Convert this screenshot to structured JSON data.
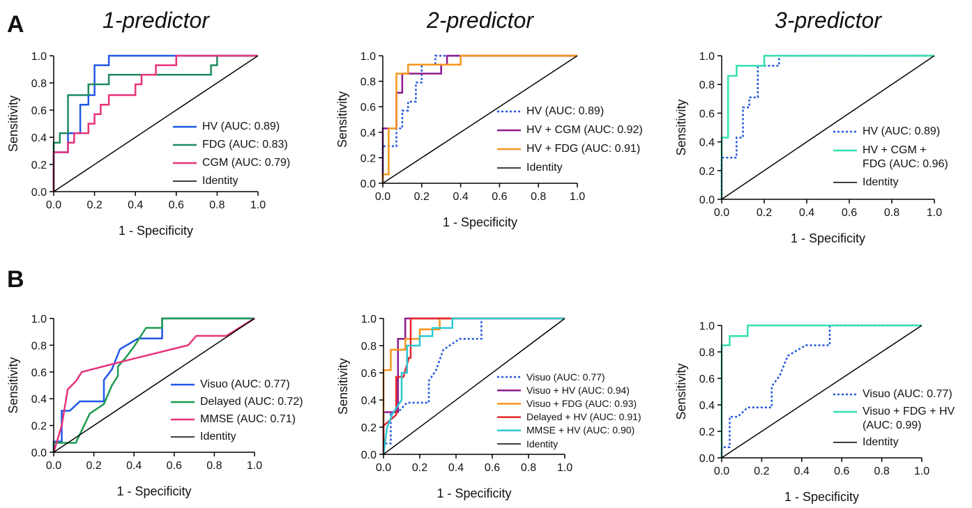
{
  "panel_labels": [
    "A",
    "B"
  ],
  "chart_data": [
    {
      "type": "line",
      "title": "1-predictor",
      "xlabel": "1 - Specificity",
      "ylabel": "Sensitivity",
      "xlim": [
        0,
        1
      ],
      "ylim": [
        0,
        1
      ],
      "xticks": [
        {
          "value": 0,
          "label": "0.0"
        },
        {
          "value": 0.2,
          "label": "0.2"
        },
        {
          "value": 0.4,
          "label": "0.4"
        },
        {
          "value": 0.6,
          "label": "0.6"
        },
        {
          "value": 0.8,
          "label": "0.8"
        },
        {
          "value": 1,
          "label": "1.0"
        }
      ],
      "yticks": [
        {
          "value": 0,
          "label": "0.0"
        },
        {
          "value": 0.2,
          "label": "0.2"
        },
        {
          "value": 0.4,
          "label": "0.4"
        },
        {
          "value": 0.6,
          "label": "0.6"
        },
        {
          "value": 0.8,
          "label": "0.8"
        },
        {
          "value": 1,
          "label": "1.0"
        }
      ],
      "series": [
        {
          "name": "HV (AUC: 0.89)",
          "color": "#1f57e6",
          "style": "solid",
          "x": [
            0,
            0,
            0.07,
            0.07,
            0.13,
            0.13,
            0.17,
            0.17,
            0.2,
            0.2,
            0.27,
            0.27,
            1
          ],
          "values": [
            0,
            0.29,
            0.29,
            0.43,
            0.43,
            0.64,
            0.64,
            0.71,
            0.71,
            0.93,
            0.93,
            1,
            1
          ]
        },
        {
          "name": "FDG (AUC: 0.83)",
          "color": "#1e8a5e",
          "style": "solid",
          "x": [
            0,
            0,
            0.03,
            0.03,
            0.07,
            0.07,
            0.17,
            0.17,
            0.27,
            0.27,
            0.77,
            0.77,
            0.8,
            0.8,
            1
          ],
          "values": [
            0,
            0.36,
            0.36,
            0.43,
            0.43,
            0.71,
            0.71,
            0.79,
            0.79,
            0.86,
            0.86,
            0.93,
            0.93,
            1,
            1
          ]
        },
        {
          "name": "CGM (AUC: 0.79)",
          "color": "#e8317a",
          "style": "solid",
          "x": [
            0,
            0,
            0.07,
            0.07,
            0.1,
            0.1,
            0.17,
            0.17,
            0.2,
            0.2,
            0.23,
            0.23,
            0.27,
            0.27,
            0.4,
            0.4,
            0.43,
            0.43,
            0.5,
            0.5,
            0.6,
            0.6,
            1
          ],
          "values": [
            0,
            0.29,
            0.29,
            0.36,
            0.36,
            0.43,
            0.43,
            0.5,
            0.5,
            0.57,
            0.57,
            0.64,
            0.64,
            0.71,
            0.71,
            0.79,
            0.79,
            0.86,
            0.86,
            0.93,
            0.93,
            1,
            1
          ]
        },
        {
          "name": "Identity",
          "color": "#000000",
          "style": "thin",
          "x": [
            0,
            1
          ],
          "values": [
            0,
            1
          ]
        }
      ]
    },
    {
      "type": "line",
      "title": "2-predictor",
      "xlabel": "1 - Specificity",
      "ylabel": "Sensitivity",
      "xlim": [
        0,
        1
      ],
      "ylim": [
        0,
        1
      ],
      "xticks": [
        {
          "value": 0,
          "label": "0.0"
        },
        {
          "value": 0.2,
          "label": "0.2"
        },
        {
          "value": 0.4,
          "label": "0.4"
        },
        {
          "value": 0.6,
          "label": "0.6"
        },
        {
          "value": 0.8,
          "label": "0.8"
        },
        {
          "value": 1,
          "label": "1.0"
        }
      ],
      "yticks": [
        {
          "value": 0,
          "label": "0.0"
        },
        {
          "value": 0.2,
          "label": "0.2"
        },
        {
          "value": 0.4,
          "label": "0.4"
        },
        {
          "value": 0.6,
          "label": "0.6"
        },
        {
          "value": 0.8,
          "label": "0.8"
        },
        {
          "value": 1,
          "label": "1.0"
        }
      ],
      "series": [
        {
          "name": "HV (AUC: 0.89)",
          "color": "#2255dd",
          "style": "dotted",
          "x": [
            0,
            0,
            0.07,
            0.07,
            0.1,
            0.1,
            0.13,
            0.13,
            0.17,
            0.17,
            0.2,
            0.2,
            0.27,
            0.27,
            1
          ],
          "values": [
            0,
            0.29,
            0.29,
            0.43,
            0.43,
            0.57,
            0.57,
            0.64,
            0.64,
            0.79,
            0.79,
            0.93,
            0.93,
            1,
            1
          ]
        },
        {
          "name": "HV + CGM (AUC: 0.92)",
          "color": "#8b1a8f",
          "style": "solid",
          "x": [
            0,
            0,
            0.07,
            0.07,
            0.1,
            0.1,
            0.3,
            0.3,
            0.33,
            0.33,
            1
          ],
          "values": [
            0,
            0.43,
            0.43,
            0.71,
            0.71,
            0.86,
            0.86,
            0.93,
            0.93,
            1,
            1
          ]
        },
        {
          "name": "HV + FDG (AUC: 0.91)",
          "color": "#f7941d",
          "style": "solid",
          "x": [
            0,
            0,
            0.03,
            0.03,
            0.07,
            0.07,
            0.13,
            0.13,
            0.4,
            0.4,
            1
          ],
          "values": [
            0,
            0.07,
            0.07,
            0.43,
            0.43,
            0.86,
            0.86,
            0.93,
            0.93,
            1,
            1
          ]
        },
        {
          "name": "Identity",
          "color": "#000000",
          "style": "thin",
          "x": [
            0,
            1
          ],
          "values": [
            0,
            1
          ]
        }
      ]
    },
    {
      "type": "line",
      "title": "3-predictor",
      "xlabel": "1 - Specificity",
      "ylabel": "Sensitivity",
      "xlim": [
        0,
        1
      ],
      "ylim": [
        0,
        1
      ],
      "xticks": [
        {
          "value": 0,
          "label": "0.0"
        },
        {
          "value": 0.2,
          "label": "0.2"
        },
        {
          "value": 0.4,
          "label": "0.4"
        },
        {
          "value": 0.6,
          "label": "0.6"
        },
        {
          "value": 0.8,
          "label": "0.8"
        },
        {
          "value": 1,
          "label": "1.0"
        }
      ],
      "yticks": [
        {
          "value": 0,
          "label": "0.0"
        },
        {
          "value": 0.2,
          "label": "0.2"
        },
        {
          "value": 0.4,
          "label": "0.4"
        },
        {
          "value": 0.6,
          "label": "0.6"
        },
        {
          "value": 0.8,
          "label": "0.8"
        },
        {
          "value": 1,
          "label": "1.0"
        }
      ],
      "series": [
        {
          "name": "HV (AUC: 0.89)",
          "color": "#2255dd",
          "style": "dotted",
          "x": [
            0,
            0,
            0.07,
            0.07,
            0.1,
            0.1,
            0.13,
            0.13,
            0.17,
            0.17,
            0.2,
            0.2,
            0.27,
            0.27,
            1
          ],
          "values": [
            0,
            0.29,
            0.29,
            0.43,
            0.43,
            0.64,
            0.64,
            0.71,
            0.71,
            0.93,
            0.93,
            0.93,
            0.93,
            1,
            1
          ]
        },
        {
          "name": "HV + CGM + FDG (AUC: 0.96)",
          "color": "#33e0b0",
          "style": "solid",
          "x": [
            0,
            0,
            0.03,
            0.03,
            0.07,
            0.07,
            0.2,
            0.2,
            1
          ],
          "values": [
            0,
            0.43,
            0.43,
            0.86,
            0.86,
            0.93,
            0.93,
            1,
            1
          ]
        },
        {
          "name": "Identity",
          "color": "#000000",
          "style": "thin",
          "x": [
            0,
            1
          ],
          "values": [
            0,
            1
          ]
        }
      ]
    },
    {
      "type": "line",
      "xlabel": "1 - Specificity",
      "ylabel": "Sensitivity",
      "xlim": [
        0,
        1
      ],
      "ylim": [
        0,
        1
      ],
      "xticks": [
        {
          "value": 0,
          "label": "0.0"
        },
        {
          "value": 0.2,
          "label": "0.2"
        },
        {
          "value": 0.4,
          "label": "0.4"
        },
        {
          "value": 0.6,
          "label": "0.6"
        },
        {
          "value": 0.8,
          "label": "0.8"
        },
        {
          "value": 1,
          "label": "1.0"
        }
      ],
      "yticks": [
        {
          "value": 0,
          "label": "0.0"
        },
        {
          "value": 0.2,
          "label": "0.2"
        },
        {
          "value": 0.4,
          "label": "0.4"
        },
        {
          "value": 0.6,
          "label": "0.6"
        },
        {
          "value": 0.8,
          "label": "0.8"
        },
        {
          "value": 1,
          "label": "1.0"
        }
      ],
      "series": [
        {
          "name": "Visuo (AUC: 0.77)",
          "color": "#1f57e6",
          "style": "solid",
          "x": [
            0,
            0,
            0.04,
            0.04,
            0.08,
            0.13,
            0.25,
            0.25,
            0.29,
            0.33,
            0.42,
            0.54,
            0.54,
            1
          ],
          "values": [
            0,
            0.08,
            0.08,
            0.31,
            0.31,
            0.38,
            0.38,
            0.54,
            0.62,
            0.77,
            0.85,
            0.85,
            1,
            1
          ]
        },
        {
          "name": "Delayed (AUC: 0.72)",
          "color": "#1e9a4e",
          "style": "solid",
          "x": [
            0,
            0,
            0.11,
            0.18,
            0.25,
            0.29,
            0.32,
            0.32,
            0.36,
            0.4,
            0.46,
            0.54,
            0.54,
            1
          ],
          "values": [
            0,
            0.07,
            0.07,
            0.29,
            0.36,
            0.5,
            0.57,
            0.64,
            0.71,
            0.79,
            0.93,
            0.93,
            1,
            1
          ]
        },
        {
          "name": "MMSE (AUC: 0.71)",
          "color": "#e8317a",
          "style": "solid",
          "x": [
            0,
            0.04,
            0.07,
            0.11,
            0.14,
            0.4,
            0.67,
            0.71,
            0.86,
            1
          ],
          "values": [
            0,
            0.2,
            0.47,
            0.53,
            0.6,
            0.7,
            0.8,
            0.87,
            0.87,
            1
          ]
        },
        {
          "name": "Identity",
          "color": "#000000",
          "style": "thin",
          "x": [
            0,
            1
          ],
          "values": [
            0,
            1
          ]
        }
      ]
    },
    {
      "type": "line",
      "xlabel": "1 - Specificity",
      "ylabel": "Sensitivity",
      "xlim": [
        0,
        1
      ],
      "ylim": [
        0,
        1
      ],
      "xticks": [
        {
          "value": 0,
          "label": "0.0"
        },
        {
          "value": 0.2,
          "label": "0.2"
        },
        {
          "value": 0.4,
          "label": "0.4"
        },
        {
          "value": 0.6,
          "label": "0.6"
        },
        {
          "value": 0.8,
          "label": "0.8"
        },
        {
          "value": 1,
          "label": "1.0"
        }
      ],
      "yticks": [
        {
          "value": 0,
          "label": "0.0"
        },
        {
          "value": 0.2,
          "label": "0.2"
        },
        {
          "value": 0.4,
          "label": "0.4"
        },
        {
          "value": 0.6,
          "label": "0.6"
        },
        {
          "value": 0.8,
          "label": "0.8"
        },
        {
          "value": 1,
          "label": "1.0"
        }
      ],
      "series": [
        {
          "name": "Visuo (AUC: 0.77)",
          "color": "#2255dd",
          "style": "dotted",
          "x": [
            0,
            0,
            0.04,
            0.04,
            0.08,
            0.13,
            0.25,
            0.25,
            0.29,
            0.33,
            0.42,
            0.54,
            0.54,
            1
          ],
          "values": [
            0,
            0.08,
            0.08,
            0.31,
            0.31,
            0.38,
            0.38,
            0.54,
            0.62,
            0.77,
            0.85,
            0.85,
            1,
            1
          ]
        },
        {
          "name": "Visuo + HV (AUC: 0.94)",
          "color": "#8b1a8f",
          "style": "solid",
          "x": [
            0,
            0,
            0.08,
            0.08,
            0.12,
            0.12,
            1
          ],
          "values": [
            0,
            0.31,
            0.31,
            0.85,
            0.85,
            1,
            1
          ]
        },
        {
          "name": "Visuo + FDG (AUC: 0.93)",
          "color": "#f7941d",
          "style": "solid",
          "x": [
            0,
            0,
            0.04,
            0.04,
            0.12,
            0.12,
            0.2,
            0.2,
            0.31,
            0.31,
            1
          ],
          "values": [
            0,
            0.62,
            0.62,
            0.77,
            0.77,
            0.85,
            0.85,
            0.92,
            0.92,
            1,
            1
          ]
        },
        {
          "name": "Delayed + HV (AUC: 0.91)",
          "color": "#e8262a",
          "style": "solid",
          "x": [
            0,
            0,
            0.07,
            0.07,
            0.11,
            0.14,
            0.15,
            0.15,
            1
          ],
          "values": [
            0,
            0.21,
            0.29,
            0.57,
            0.57,
            0.71,
            0.71,
            1,
            1
          ]
        },
        {
          "name": "MMSE + HV (AUC: 0.90)",
          "color": "#2ec8d4",
          "style": "solid",
          "x": [
            0,
            0.02,
            0.05,
            0.1,
            0.1,
            0.13,
            0.13,
            0.2,
            0.2,
            0.27,
            0.27,
            0.38,
            0.38,
            1
          ],
          "values": [
            0,
            0.2,
            0.3,
            0.4,
            0.6,
            0.6,
            0.8,
            0.8,
            0.87,
            0.87,
            0.93,
            0.93,
            1,
            1
          ]
        },
        {
          "name": "Identity",
          "color": "#000000",
          "style": "thin",
          "x": [
            0,
            1
          ],
          "values": [
            0,
            1
          ]
        }
      ]
    },
    {
      "type": "line",
      "xlabel": "1 - Specificity",
      "ylabel": "Sensitivity",
      "xlim": [
        0,
        1
      ],
      "ylim": [
        0,
        1
      ],
      "xticks": [
        {
          "value": 0,
          "label": "0.0"
        },
        {
          "value": 0.2,
          "label": "0.2"
        },
        {
          "value": 0.4,
          "label": "0.4"
        },
        {
          "value": 0.6,
          "label": "0.6"
        },
        {
          "value": 0.8,
          "label": "0.8"
        },
        {
          "value": 1,
          "label": "1.0"
        }
      ],
      "yticks": [
        {
          "value": 0,
          "label": "0.0"
        },
        {
          "value": 0.2,
          "label": "0.2"
        },
        {
          "value": 0.4,
          "label": "0.4"
        },
        {
          "value": 0.6,
          "label": "0.6"
        },
        {
          "value": 0.8,
          "label": "0.8"
        },
        {
          "value": 1,
          "label": "1.0"
        }
      ],
      "series": [
        {
          "name": "Visuo (AUC: 0.77)",
          "color": "#2255dd",
          "style": "dotted",
          "x": [
            0,
            0,
            0.04,
            0.04,
            0.08,
            0.13,
            0.25,
            0.25,
            0.29,
            0.33,
            0.42,
            0.54,
            0.54,
            1
          ],
          "values": [
            0,
            0.08,
            0.08,
            0.31,
            0.31,
            0.38,
            0.38,
            0.54,
            0.62,
            0.77,
            0.85,
            0.85,
            1,
            1
          ]
        },
        {
          "name": "Visuo + FDG + HV (AUC: 0.99)",
          "color": "#33e0b0",
          "style": "solid",
          "x": [
            0,
            0,
            0.04,
            0.04,
            0.13,
            0.13,
            1
          ],
          "values": [
            0,
            0.85,
            0.85,
            0.92,
            0.92,
            1,
            1
          ]
        },
        {
          "name": "Identity",
          "color": "#000000",
          "style": "thin",
          "x": [
            0,
            1
          ],
          "values": [
            0,
            1
          ]
        }
      ]
    }
  ]
}
